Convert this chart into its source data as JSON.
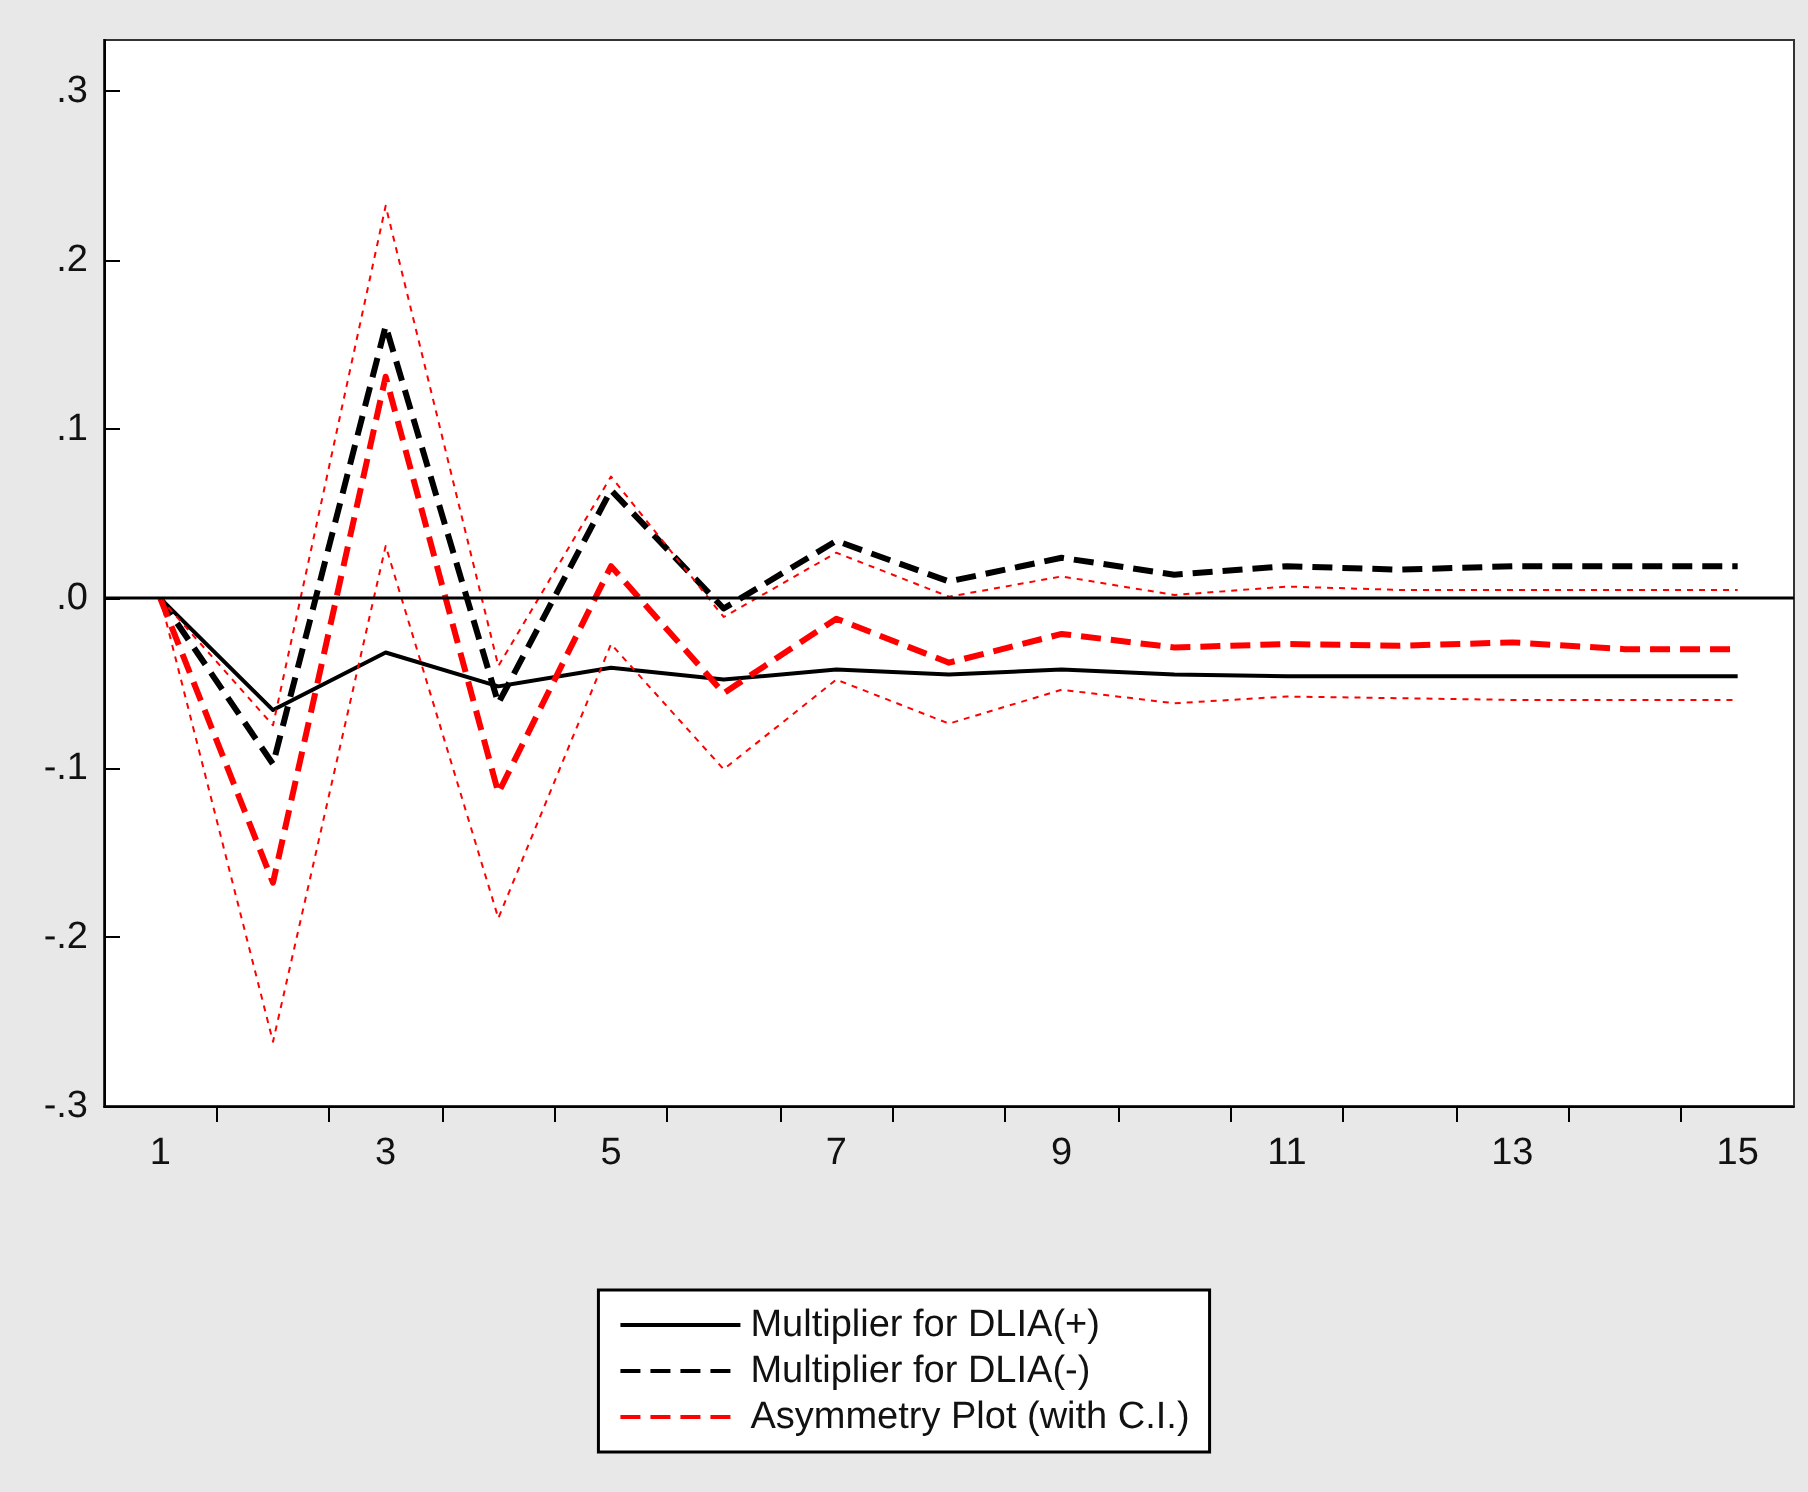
{
  "chart_data": {
    "type": "line",
    "x": [
      1,
      2,
      3,
      4,
      5,
      6,
      7,
      8,
      9,
      10,
      11,
      12,
      13,
      14,
      15
    ],
    "xlim": [
      0.5,
      15.5
    ],
    "xticks": [
      1,
      3,
      5,
      7,
      9,
      11,
      13,
      15,
      {
        "value": 1.5,
        "label": null
      },
      {
        "value": 2.5,
        "label": null
      },
      {
        "value": 3.5,
        "label": null
      },
      {
        "value": 4.5,
        "label": null
      },
      {
        "value": 5.5,
        "label": null
      },
      {
        "value": 6.5,
        "label": null
      },
      {
        "value": 7.5,
        "label": null
      },
      {
        "value": 8.5,
        "label": null
      },
      {
        "value": 9.5,
        "label": null
      },
      {
        "value": 10.5,
        "label": null
      },
      {
        "value": 11.5,
        "label": null
      },
      {
        "value": 12.5,
        "label": null
      },
      {
        "value": 13.5,
        "label": null
      },
      {
        "value": 14.5,
        "label": null
      }
    ],
    "series": [
      {
        "name": "Multiplier for DLIA(+)",
        "color": "#000000",
        "line_style": "solid",
        "values": [
          0,
          -0.066,
          -0.032,
          -0.052,
          -0.041,
          -0.048,
          -0.042,
          -0.045,
          -0.042,
          -0.045,
          -0.046,
          -0.046,
          -0.046,
          -0.046,
          -0.046
        ]
      },
      {
        "name": "Multiplier for DLIA(-)",
        "color": "#000000",
        "line_style": "dashed",
        "values": [
          0,
          -0.098,
          0.161,
          -0.062,
          0.064,
          -0.006,
          0.034,
          0.01,
          0.024,
          0.014,
          0.019,
          0.017,
          0.019,
          0.019,
          0.019
        ]
      },
      {
        "name": "Asymmetry Plot (with C.I.)",
        "color": "#ff0000",
        "line_style": "dashed",
        "values": [
          0,
          -0.168,
          0.131,
          -0.115,
          0.019,
          -0.056,
          -0.012,
          -0.038,
          -0.021,
          -0.029,
          -0.027,
          -0.028,
          -0.026,
          -0.03,
          -0.03
        ]
      },
      {
        "color": "#ff0000",
        "line_style": "dotted",
        "values": [
          0,
          -0.075,
          0.232,
          -0.04,
          0.072,
          -0.011,
          0.027,
          0.001,
          0.013,
          0.002,
          0.007,
          0.005,
          0.005,
          0.005,
          0.005
        ]
      },
      {
        "color": "#ff0000",
        "line_style": "dotted",
        "values": [
          0,
          -0.262,
          0.031,
          -0.189,
          -0.027,
          -0.101,
          -0.048,
          -0.074,
          -0.054,
          -0.062,
          -0.058,
          -0.059,
          -0.06,
          -0.06,
          -0.06
        ]
      }
    ],
    "ylim": [
      -0.3,
      0.33
    ],
    "yticks": [
      {
        "value": -0.3,
        "label": "-.3"
      },
      {
        "value": -0.2,
        "label": "-.2"
      },
      {
        "value": -0.1,
        "label": "-.1"
      },
      {
        "value": 0,
        "label": ".0"
      },
      {
        "value": 0.1,
        "label": ".1"
      },
      {
        "value": 0.2,
        "label": ".2"
      },
      {
        "value": 0.3,
        "label": ".3"
      }
    ],
    "ref_lines": [
      {
        "axis": "y",
        "value": 0,
        "color": "#000000",
        "line_style": "solid"
      }
    ],
    "grid": false,
    "legend": "bottom",
    "marker": "none"
  }
}
